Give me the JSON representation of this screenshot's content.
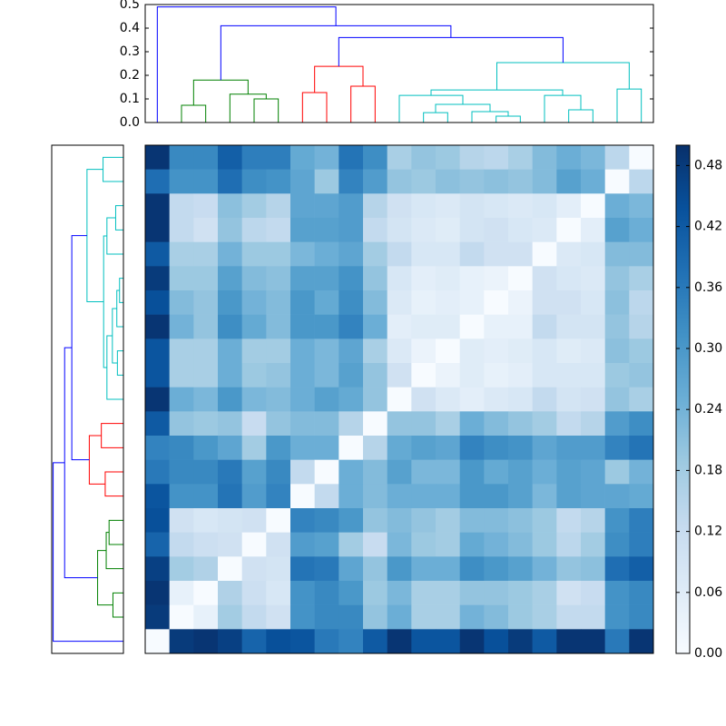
{
  "chart_data": {
    "type": "heatmap",
    "colormap": [
      "#f7fbff",
      "#deebf7",
      "#c6dbef",
      "#9ecae1",
      "#6baed6",
      "#4292c6",
      "#2171b5",
      "#08519c",
      "#08306b"
    ],
    "clim": [
      0,
      0.5
    ],
    "cticks": [
      {
        "value": 0,
        "label": "0.00"
      },
      {
        "value": 0.06,
        "label": "0.06"
      },
      {
        "value": 0.12,
        "label": "0.12"
      },
      {
        "value": 0.18,
        "label": "0.18"
      },
      {
        "value": 0.24,
        "label": "0.24"
      },
      {
        "value": 0.3,
        "label": "0.30"
      },
      {
        "value": 0.36,
        "label": "0.36"
      },
      {
        "value": 0.42,
        "label": "0.42"
      },
      {
        "value": 0.48,
        "label": "0.48"
      }
    ],
    "values": [
      [
        0.49,
        0.33,
        0.33,
        0.41,
        0.35,
        0.35,
        0.26,
        0.24,
        0.37,
        0.32,
        0.17,
        0.2,
        0.19,
        0.15,
        0.14,
        0.17,
        0.22,
        0.25,
        0.23,
        0.14,
        0
      ],
      [
        0.38,
        0.31,
        0.31,
        0.38,
        0.32,
        0.31,
        0.27,
        0.19,
        0.34,
        0.29,
        0.2,
        0.19,
        0.21,
        0.2,
        0.21,
        0.2,
        0.22,
        0.28,
        0.25,
        0,
        0.14
      ],
      [
        0.49,
        0.13,
        0.12,
        0.21,
        0.18,
        0.15,
        0.27,
        0.27,
        0.29,
        0.15,
        0.1,
        0.08,
        0.07,
        0.09,
        0.08,
        0.07,
        0.08,
        0.05,
        0,
        0.25,
        0.23
      ],
      [
        0.49,
        0.13,
        0.1,
        0.2,
        0.14,
        0.13,
        0.28,
        0.28,
        0.29,
        0.13,
        0.09,
        0.07,
        0.06,
        0.09,
        0.1,
        0.08,
        0.07,
        0,
        0.05,
        0.28,
        0.25
      ],
      [
        0.42,
        0.17,
        0.17,
        0.24,
        0.19,
        0.19,
        0.23,
        0.25,
        0.27,
        0.18,
        0.13,
        0.08,
        0.08,
        0.13,
        0.1,
        0.1,
        0,
        0.07,
        0.08,
        0.22,
        0.22
      ],
      [
        0.48,
        0.19,
        0.19,
        0.28,
        0.22,
        0.21,
        0.28,
        0.28,
        0.31,
        0.2,
        0.08,
        0.05,
        0.06,
        0.04,
        0.03,
        0,
        0.1,
        0.08,
        0.07,
        0.2,
        0.17
      ],
      [
        0.44,
        0.22,
        0.2,
        0.3,
        0.24,
        0.22,
        0.3,
        0.26,
        0.32,
        0.22,
        0.07,
        0.04,
        0.05,
        0.04,
        0,
        0.03,
        0.1,
        0.1,
        0.08,
        0.21,
        0.14
      ],
      [
        0.49,
        0.24,
        0.2,
        0.32,
        0.26,
        0.22,
        0.3,
        0.3,
        0.34,
        0.25,
        0.05,
        0.06,
        0.06,
        0,
        0.04,
        0.04,
        0.13,
        0.09,
        0.09,
        0.2,
        0.15
      ],
      [
        0.43,
        0.17,
        0.17,
        0.25,
        0.18,
        0.18,
        0.25,
        0.23,
        0.27,
        0.17,
        0.07,
        0.03,
        0,
        0.06,
        0.05,
        0.06,
        0.08,
        0.06,
        0.07,
        0.21,
        0.19
      ],
      [
        0.43,
        0.17,
        0.17,
        0.25,
        0.19,
        0.2,
        0.25,
        0.23,
        0.28,
        0.2,
        0.1,
        0,
        0.03,
        0.06,
        0.04,
        0.05,
        0.08,
        0.08,
        0.08,
        0.19,
        0.2
      ],
      [
        0.49,
        0.25,
        0.23,
        0.3,
        0.23,
        0.22,
        0.25,
        0.28,
        0.26,
        0.2,
        0,
        0.1,
        0.07,
        0.05,
        0.07,
        0.08,
        0.13,
        0.09,
        0.1,
        0.2,
        0.17
      ],
      [
        0.42,
        0.2,
        0.19,
        0.2,
        0.12,
        0.2,
        0.22,
        0.22,
        0.15,
        0,
        0.2,
        0.2,
        0.17,
        0.25,
        0.22,
        0.2,
        0.18,
        0.13,
        0.15,
        0.29,
        0.32
      ],
      [
        0.34,
        0.33,
        0.3,
        0.27,
        0.18,
        0.3,
        0.25,
        0.25,
        0,
        0.15,
        0.26,
        0.28,
        0.27,
        0.34,
        0.32,
        0.31,
        0.27,
        0.29,
        0.29,
        0.34,
        0.37
      ],
      [
        0.36,
        0.33,
        0.33,
        0.36,
        0.28,
        0.33,
        0.13,
        0,
        0.25,
        0.22,
        0.28,
        0.23,
        0.23,
        0.3,
        0.26,
        0.28,
        0.25,
        0.28,
        0.27,
        0.19,
        0.24
      ],
      [
        0.43,
        0.31,
        0.31,
        0.37,
        0.29,
        0.34,
        0,
        0.13,
        0.25,
        0.22,
        0.25,
        0.25,
        0.25,
        0.3,
        0.3,
        0.28,
        0.23,
        0.28,
        0.27,
        0.27,
        0.26
      ],
      [
        0.44,
        0.1,
        0.08,
        0.09,
        0.1,
        0,
        0.34,
        0.33,
        0.3,
        0.2,
        0.22,
        0.2,
        0.18,
        0.22,
        0.22,
        0.21,
        0.19,
        0.13,
        0.15,
        0.31,
        0.35
      ],
      [
        0.4,
        0.13,
        0.11,
        0.1,
        0,
        0.1,
        0.29,
        0.28,
        0.18,
        0.12,
        0.23,
        0.19,
        0.18,
        0.26,
        0.24,
        0.22,
        0.19,
        0.14,
        0.18,
        0.32,
        0.35
      ],
      [
        0.47,
        0.18,
        0.16,
        0,
        0.1,
        0.09,
        0.37,
        0.36,
        0.27,
        0.2,
        0.3,
        0.25,
        0.25,
        0.32,
        0.3,
        0.28,
        0.24,
        0.2,
        0.21,
        0.38,
        0.41
      ],
      [
        0.49,
        0.04,
        0,
        0.16,
        0.11,
        0.08,
        0.31,
        0.33,
        0.3,
        0.19,
        0.23,
        0.17,
        0.17,
        0.2,
        0.2,
        0.19,
        0.17,
        0.1,
        0.12,
        0.31,
        0.33
      ],
      [
        0.48,
        0,
        0.04,
        0.18,
        0.13,
        0.1,
        0.31,
        0.33,
        0.33,
        0.2,
        0.25,
        0.17,
        0.17,
        0.24,
        0.22,
        0.19,
        0.17,
        0.13,
        0.13,
        0.31,
        0.33
      ],
      [
        0,
        0.48,
        0.49,
        0.47,
        0.4,
        0.44,
        0.43,
        0.36,
        0.34,
        0.42,
        0.49,
        0.43,
        0.43,
        0.49,
        0.44,
        0.48,
        0.42,
        0.49,
        0.49,
        0.36,
        0.49
      ]
    ],
    "dendrogram": {
      "ylim": [
        0,
        0.5
      ],
      "yticks": [
        {
          "value": 0,
          "label": "0.0"
        },
        0.1,
        0.2,
        0.3,
        0.4,
        0.5
      ],
      "merges": [
        {
          "children": [
            1,
            2
          ],
          "height": 0.073,
          "color": "#008000"
        },
        {
          "children": [
            4,
            5
          ],
          "height": 0.1,
          "color": "#008000"
        },
        {
          "children": [
            3,
            22
          ],
          "height": 0.12,
          "color": "#008000"
        },
        {
          "children": [
            21,
            23
          ],
          "height": 0.18,
          "color": "#008000"
        },
        {
          "children": [
            6,
            7
          ],
          "height": 0.127,
          "color": "#ff0000"
        },
        {
          "children": [
            8,
            9
          ],
          "height": 0.154,
          "color": "#ff0000"
        },
        {
          "children": [
            25,
            26
          ],
          "height": 0.238,
          "color": "#ff0000"
        },
        {
          "children": [
            14,
            15
          ],
          "height": 0.027,
          "color": "#00bfbf"
        },
        {
          "children": [
            11,
            12
          ],
          "height": 0.042,
          "color": "#00bfbf"
        },
        {
          "children": [
            13,
            28
          ],
          "height": 0.046,
          "color": "#00bfbf"
        },
        {
          "children": [
            29,
            30
          ],
          "height": 0.077,
          "color": "#00bfbf"
        },
        {
          "children": [
            10,
            31
          ],
          "height": 0.115,
          "color": "#00bfbf"
        },
        {
          "children": [
            17,
            18
          ],
          "height": 0.054,
          "color": "#00bfbf"
        },
        {
          "children": [
            16,
            33
          ],
          "height": 0.115,
          "color": "#00bfbf"
        },
        {
          "children": [
            32,
            34
          ],
          "height": 0.138,
          "color": "#00bfbf"
        },
        {
          "children": [
            19,
            20
          ],
          "height": 0.142,
          "color": "#00bfbf"
        },
        {
          "children": [
            35,
            36
          ],
          "height": 0.254,
          "color": "#00bfbf"
        },
        {
          "children": [
            27,
            37
          ],
          "height": 0.36,
          "color": "#0000ff"
        },
        {
          "children": [
            24,
            38
          ],
          "height": 0.41,
          "color": "#0000ff"
        },
        {
          "children": [
            0,
            39
          ],
          "height": 0.49,
          "color": "#0000ff"
        }
      ]
    }
  }
}
